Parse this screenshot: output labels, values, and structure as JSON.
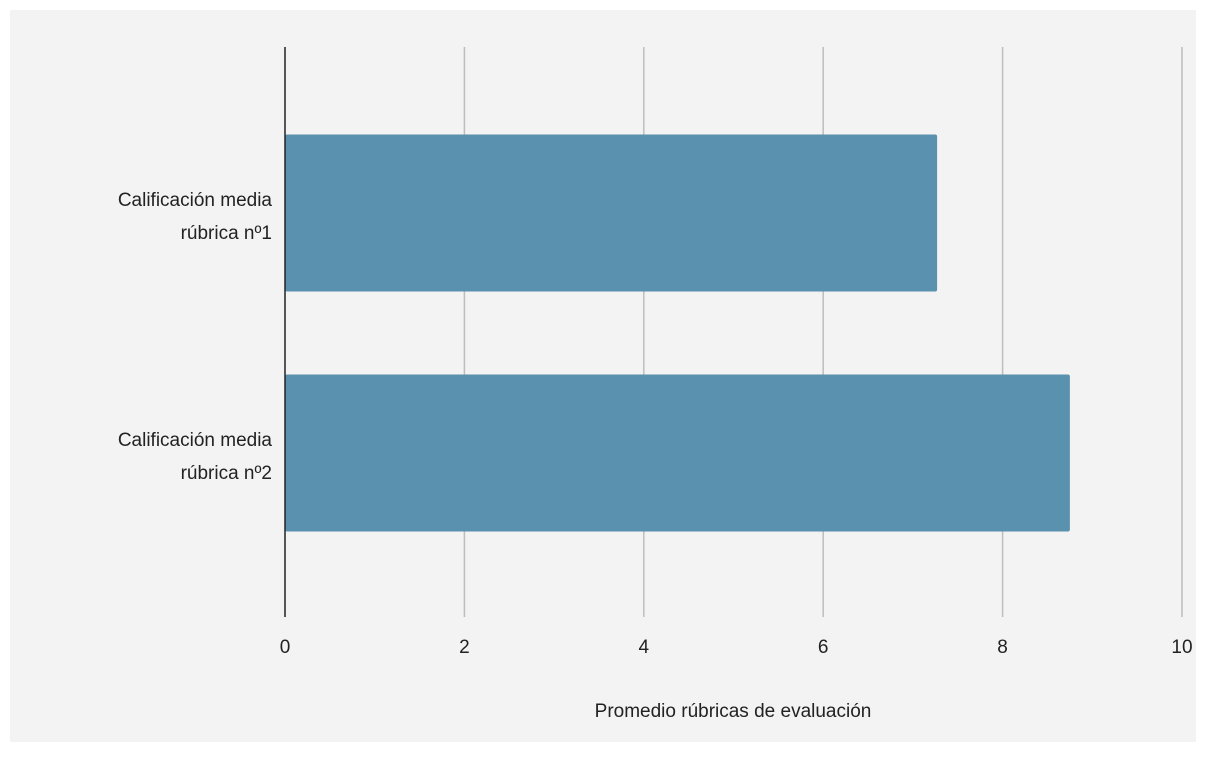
{
  "chart_data": {
    "type": "bar",
    "orientation": "horizontal",
    "categories": [
      "Calificación media rúbrica nº1",
      "Calificación media rúbrica nº2"
    ],
    "category_lines": [
      [
        "Calificación media",
        "rúbrica nº1"
      ],
      [
        "Calificación media",
        "rúbrica nº2"
      ]
    ],
    "values": [
      7.27,
      8.75
    ],
    "title": "",
    "xlabel": "Promedio rúbricas de evaluación",
    "ylabel": "",
    "xlim": [
      0,
      10
    ],
    "xticks": [
      "0",
      "2",
      "4",
      "6",
      "8",
      "10"
    ],
    "grid": "vertical",
    "legend": "none",
    "colors": {
      "bar": "#5a91ae",
      "background": "#f3f3f3",
      "grid": "#bdbdbd",
      "axis": "#222222"
    }
  }
}
